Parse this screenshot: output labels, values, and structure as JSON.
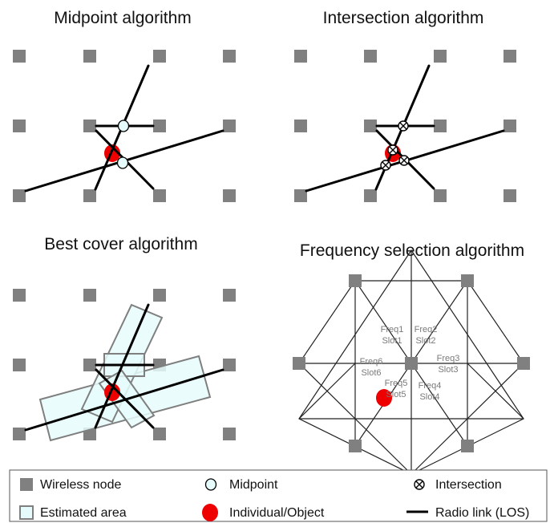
{
  "panels": {
    "midpoint": {
      "title": "Midpoint algorithm"
    },
    "intersection": {
      "title": "Intersection algorithm"
    },
    "best_cover": {
      "title": "Best cover algorithm"
    },
    "frequency": {
      "title": "Frequency selection algorithm",
      "cells": [
        {
          "freq": "Freq1",
          "slot": "Slot1"
        },
        {
          "freq": "Freq2",
          "slot": "Slot2"
        },
        {
          "freq": "Freq3",
          "slot": "Slot3"
        },
        {
          "freq": "Freq4",
          "slot": "Slot4"
        },
        {
          "freq": "Freq5",
          "slot": "Slot5"
        },
        {
          "freq": "Freq6",
          "slot": "Slot6"
        }
      ]
    }
  },
  "legend": {
    "wireless_node": "Wireless node",
    "midpoint": "Midpoint",
    "intersection": "Intersection",
    "estimated_area": "Estimated area",
    "individual_object": "Individual/Object",
    "radio_link": "Radio link (LOS)"
  },
  "colors": {
    "node": "#808080",
    "object": "#ee0000",
    "midpoint_fill": "#e6fbfb",
    "area_fill": "#e6fbfb",
    "area_stroke": "#7f7f7f",
    "link": "#000000",
    "grid_line": "#222222"
  }
}
